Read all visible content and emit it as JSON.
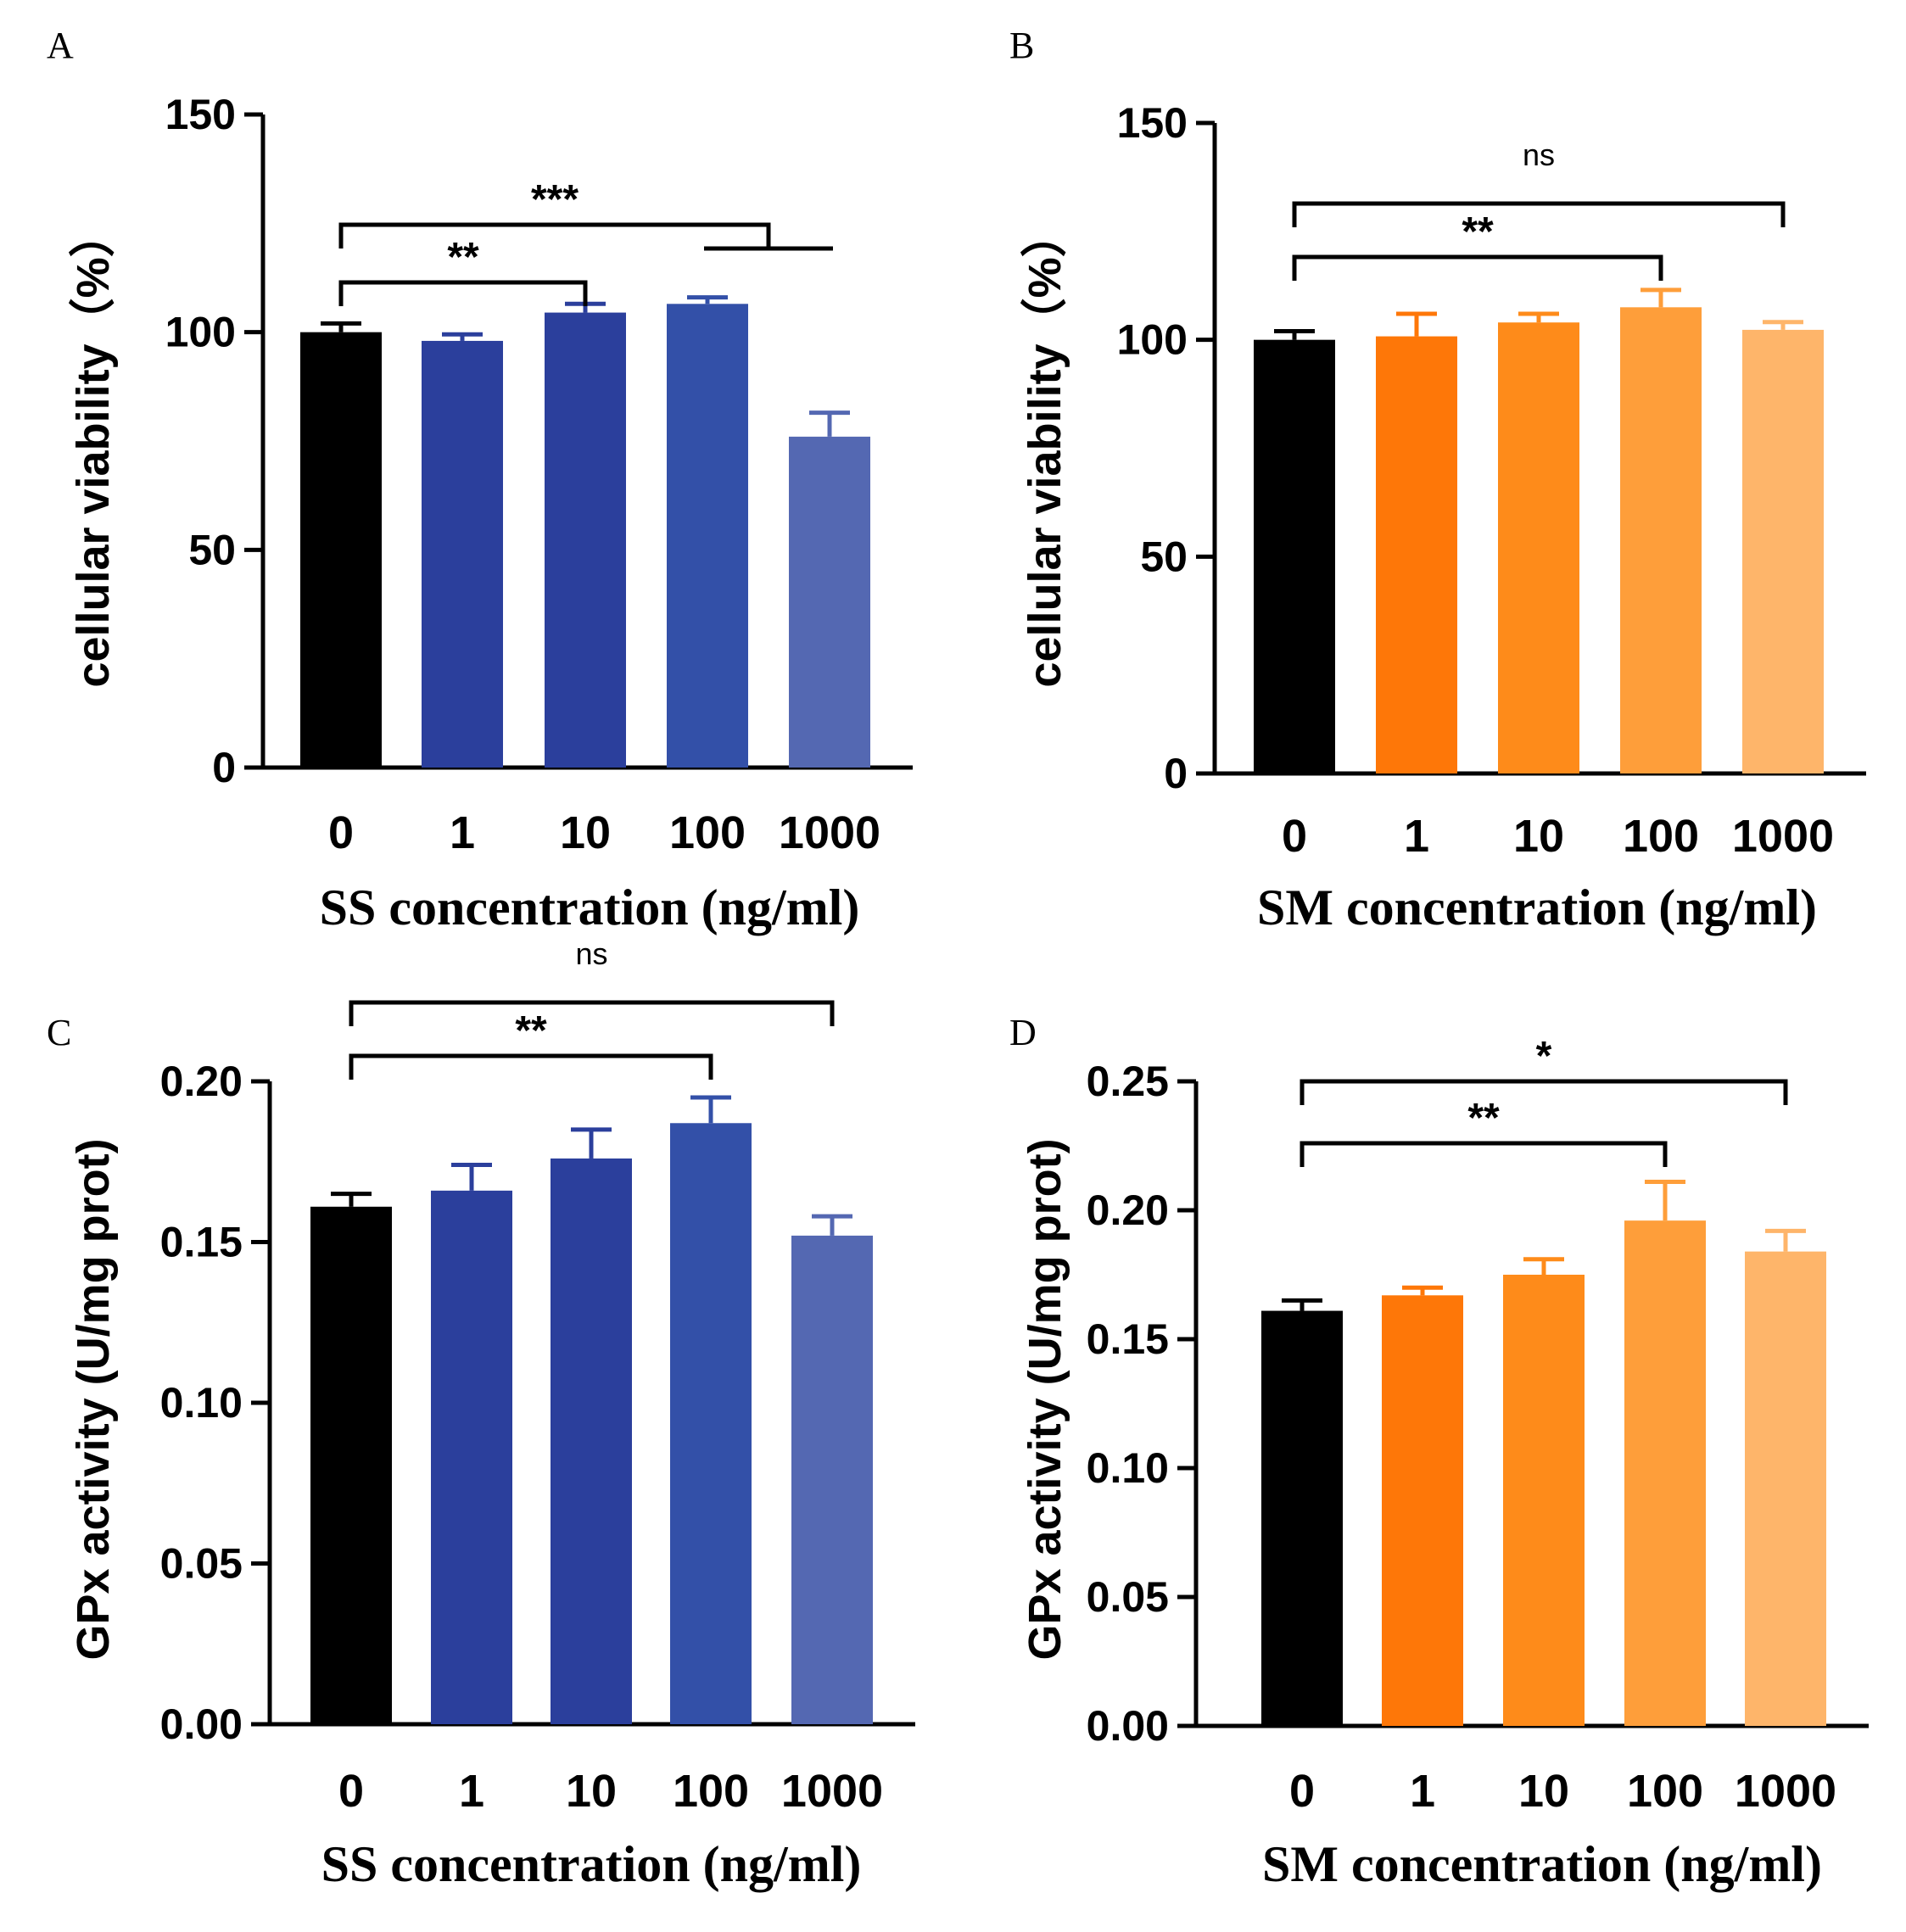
{
  "chart_data": [
    {
      "panel": "A",
      "type": "bar",
      "categories": [
        "0",
        "1",
        "10",
        "100",
        "1000"
      ],
      "values": [
        100,
        98,
        104.5,
        106.5,
        76
      ],
      "errors": [
        2,
        1.5,
        2,
        1.5,
        5.5
      ],
      "colors": [
        "#000000",
        "#2b3f9c",
        "#2b3f9c",
        "#3350a8",
        "#5468b2"
      ],
      "ylabel": "cellular viability（%）",
      "xlabel": "SS concentration (ng/ml)",
      "ylim": [
        0,
        150
      ],
      "yticks": [
        "0",
        "50",
        "100",
        "150"
      ],
      "annotations": [
        {
          "label": "**",
          "from": 0,
          "to": 2,
          "level": 1
        },
        {
          "label": "***",
          "from": 0,
          "to": 3.5,
          "level": 2,
          "subgroup": [
            3,
            4
          ]
        }
      ]
    },
    {
      "panel": "B",
      "type": "bar",
      "categories": [
        "0",
        "1",
        "10",
        "100",
        "1000"
      ],
      "values": [
        100,
        100.8,
        104,
        107.5,
        102.3
      ],
      "errors": [
        2,
        5.2,
        2,
        4,
        1.8
      ],
      "colors": [
        "#000000",
        "#fe7708",
        "#fe8b1a",
        "#fe9e3a",
        "#feb56a"
      ],
      "ylabel": "cellular viability（%）",
      "xlabel": "SM concentration (ng/ml)",
      "ylim": [
        0,
        150
      ],
      "yticks": [
        "0",
        "50",
        "100",
        "150"
      ],
      "annotations": [
        {
          "label": "**",
          "from": 0,
          "to": 3,
          "level": 1
        },
        {
          "label": "ns",
          "from": 0,
          "to": 4,
          "level": 2
        }
      ]
    },
    {
      "panel": "C",
      "type": "bar",
      "categories": [
        "0",
        "1",
        "10",
        "100",
        "1000"
      ],
      "values": [
        0.161,
        0.166,
        0.176,
        0.187,
        0.152
      ],
      "errors": [
        0.004,
        0.008,
        0.009,
        0.008,
        0.006
      ],
      "colors": [
        "#000000",
        "#2b3f9c",
        "#2b3f9c",
        "#3350a8",
        "#5468b2"
      ],
      "ylabel": "GPx activity (U/mg prot)",
      "xlabel": "SS concentration (ng/ml)",
      "ylim": [
        0,
        0.2
      ],
      "yticks": [
        "0.00",
        "0.05",
        "0.10",
        "0.15",
        "0.20"
      ],
      "annotations": [
        {
          "label": "**",
          "from": 0,
          "to": 3,
          "level": 1
        },
        {
          "label": "ns",
          "from": 0,
          "to": 4,
          "level": 2
        }
      ]
    },
    {
      "panel": "D",
      "type": "bar",
      "categories": [
        "0",
        "1",
        "10",
        "100",
        "1000"
      ],
      "values": [
        0.161,
        0.167,
        0.175,
        0.196,
        0.184
      ],
      "errors": [
        0.004,
        0.003,
        0.006,
        0.015,
        0.008
      ],
      "colors": [
        "#000000",
        "#fe7708",
        "#fe8b1a",
        "#fe9e3a",
        "#feb56a"
      ],
      "ylabel": "GPx activity (U/mg prot)",
      "xlabel": "SM concentration (ng/ml)",
      "ylim": [
        0,
        0.25
      ],
      "yticks": [
        "0.00",
        "0.05",
        "0.10",
        "0.15",
        "0.20",
        "0.25"
      ],
      "annotations": [
        {
          "label": "**",
          "from": 0,
          "to": 3,
          "level": 1
        },
        {
          "label": "*",
          "from": 0,
          "to": 4,
          "level": 2
        }
      ]
    }
  ]
}
